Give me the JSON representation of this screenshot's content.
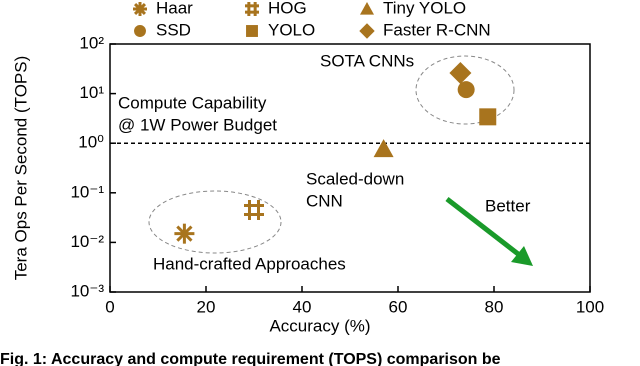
{
  "chart_data": {
    "type": "scatter",
    "xlabel": "Accuracy (%)",
    "ylabel": "Tera Ops Per Second (TOPS)",
    "xlim": [
      0,
      100
    ],
    "xticks": [
      0,
      20,
      40,
      60,
      80,
      100
    ],
    "ylim": [
      0.001,
      100
    ],
    "yscale": "log",
    "yticks": [
      {
        "value": 100,
        "label": "10²"
      },
      {
        "value": 10,
        "label": "10¹"
      },
      {
        "value": 1,
        "label": "10⁰"
      },
      {
        "value": 0.1,
        "label": "10⁻¹"
      },
      {
        "value": 0.01,
        "label": "10⁻²"
      },
      {
        "value": 0.001,
        "label": "10⁻³"
      }
    ],
    "hline": 1,
    "series": [
      {
        "name": "Haar",
        "marker": "asterisk",
        "color": "#a8741e",
        "x": [
          15.5
        ],
        "values": [
          0.015
        ]
      },
      {
        "name": "HOG",
        "marker": "hash",
        "color": "#a8741e",
        "x": [
          30
        ],
        "values": [
          0.045
        ]
      },
      {
        "name": "Tiny YOLO",
        "marker": "triangle",
        "color": "#a8741e",
        "x": [
          57
        ],
        "values": [
          0.76
        ]
      },
      {
        "name": "SSD",
        "marker": "circle",
        "color": "#a8741e",
        "x": [
          74.2
        ],
        "values": [
          12
        ]
      },
      {
        "name": "YOLO",
        "marker": "square",
        "color": "#a8741e",
        "x": [
          78.7
        ],
        "values": [
          3.4
        ]
      },
      {
        "name": "Faster R-CNN",
        "marker": "diamond",
        "color": "#a8741e",
        "x": [
          73
        ],
        "values": [
          26
        ]
      }
    ],
    "annotations": [
      {
        "lines": [
          "SOTA CNNs"
        ],
        "color": "#000000"
      },
      {
        "lines": [
          "Compute Capability",
          "@ 1W Power Budget"
        ],
        "color": "#e3001b"
      },
      {
        "lines": [
          "Scaled-down",
          "CNN"
        ],
        "color": "#000000"
      },
      {
        "lines": [
          "Hand-crafted Approaches"
        ],
        "color": "#000000"
      },
      {
        "lines": [
          "Better"
        ],
        "color": "#1a9a2a"
      }
    ],
    "caption": "Fig. 1: Accuracy and compute requirement (TOPS) comparison be"
  }
}
